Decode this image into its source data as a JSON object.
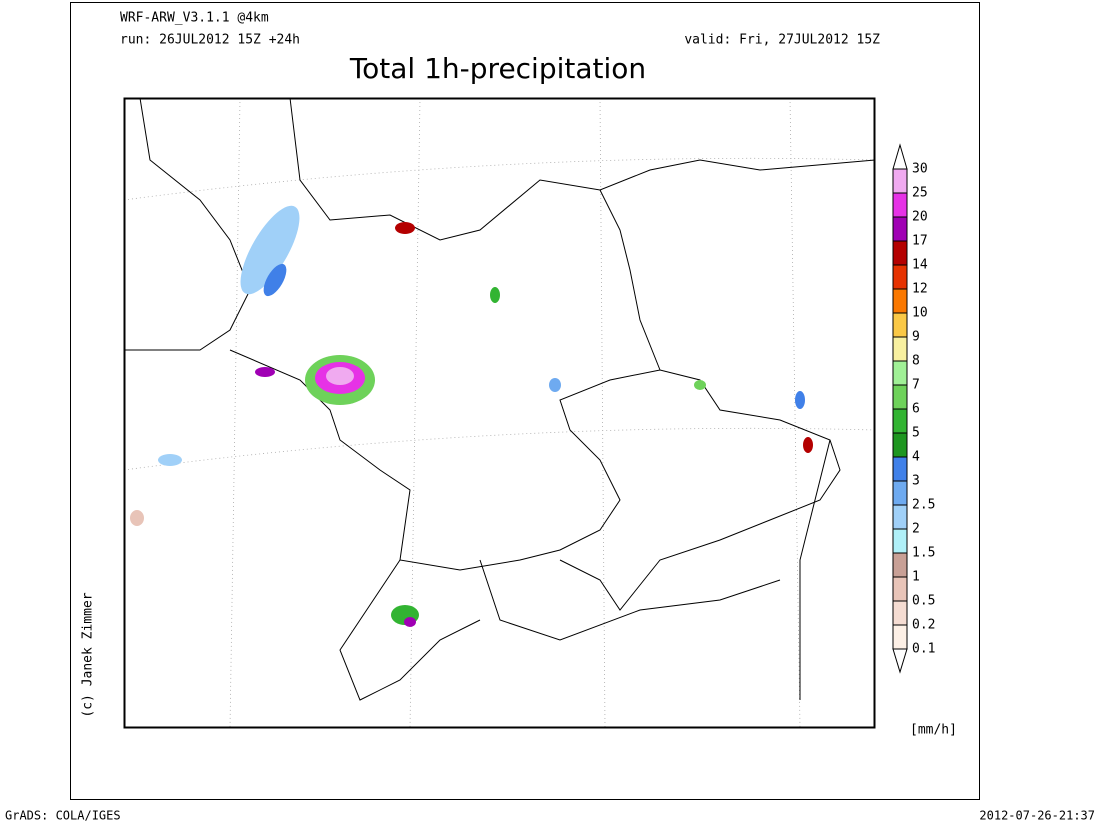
{
  "header": {
    "model": "WRF-ARW_V3.1.1 @4km",
    "run": "run: 26JUL2012 15Z +24h",
    "valid": "valid: Fri, 27JUL2012 15Z",
    "title": "Total 1h-precipitation"
  },
  "colorbar": {
    "levels": [
      0.1,
      0.2,
      0.5,
      1,
      1.5,
      2,
      2.5,
      3,
      4,
      5,
      6,
      7,
      8,
      9,
      10,
      12,
      14,
      17,
      20,
      25,
      30
    ],
    "colors": [
      "#ffffff",
      "#fdf0e6",
      "#f5dcd2",
      "#e8c4b8",
      "#c8a096",
      "#b0f0f8",
      "#a0d0f8",
      "#6eaaf0",
      "#4080e8",
      "#1e9620",
      "#32b432",
      "#6ed25a",
      "#a0f096",
      "#f8f0a0",
      "#fac846",
      "#fa7800",
      "#e63200",
      "#b40000",
      "#a000b4",
      "#e632e6",
      "#f0aaf0",
      "#ffffff"
    ],
    "unit": "[mm/h]"
  },
  "credit": "(c) Janek Zimmer",
  "footer": {
    "left": "GrADS: COLA/IGES",
    "right": "2012-07-26-21:37"
  }
}
